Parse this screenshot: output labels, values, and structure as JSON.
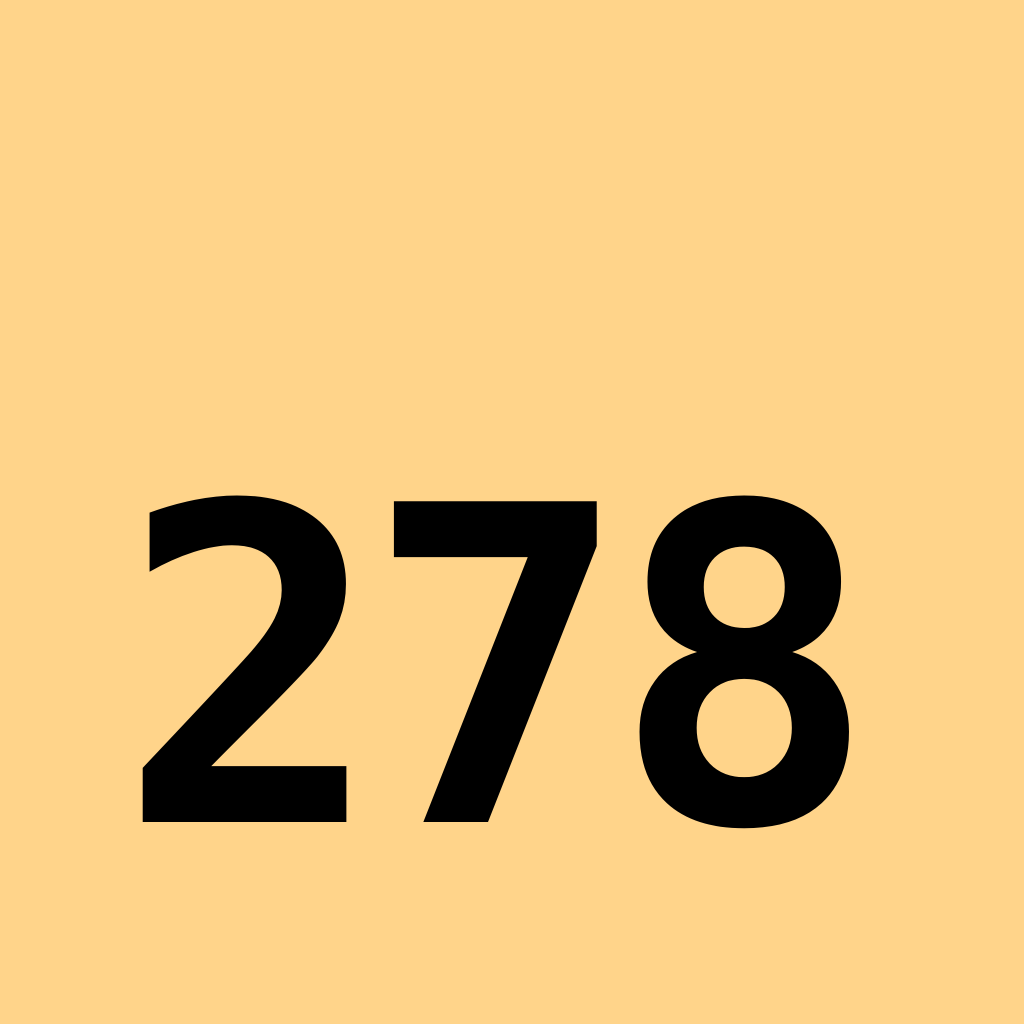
{
  "canvas": {
    "background_color": "#ffd48a",
    "text_color": "#000000"
  },
  "number": {
    "value": "278"
  }
}
